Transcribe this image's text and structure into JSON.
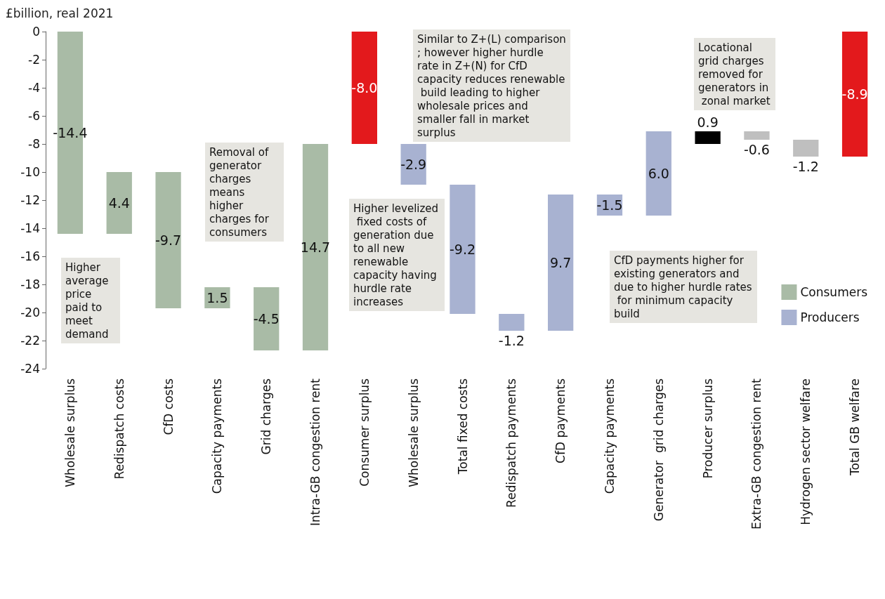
{
  "chart_data": {
    "type": "bar",
    "ylabel": "£billion, real 2021",
    "categories": [
      "Wholesale surplus",
      "Redispatch costs",
      "CfD costs",
      "Capacity payments",
      "Grid charges",
      "Intra-GB congestion rent",
      "Consumer surplus",
      "Wholesale surplus",
      "Total fixed costs",
      "Redispatch payments",
      "CfD payments",
      "Capacity payments",
      "Generator  grid charges",
      "Producer surplus",
      "Extra-GB congestion rent",
      "Hydrogen sector welfare",
      "Total GB welfare"
    ],
    "series": [
      {
        "name": "Consumers",
        "color": "#a9bba6",
        "values": [
          -14.4,
          4.4,
          -9.7,
          1.5,
          -4.5,
          14.7,
          null,
          null,
          null,
          null,
          null,
          null,
          null,
          null,
          null,
          null,
          null
        ],
        "base": [
          0,
          -14.4,
          -10.0,
          -19.7,
          -18.2,
          -22.7,
          null,
          null,
          null,
          null,
          null,
          null,
          null,
          null,
          null,
          null,
          null
        ]
      },
      {
        "name": "Producers",
        "color": "#a8b2d1",
        "values": [
          null,
          null,
          null,
          null,
          null,
          null,
          null,
          -2.9,
          -9.2,
          -1.2,
          9.7,
          -1.5,
          6.0,
          null,
          null,
          null,
          null
        ],
        "base": [
          null,
          null,
          null,
          null,
          null,
          null,
          null,
          -8.0,
          -10.9,
          -20.1,
          -21.3,
          -11.6,
          -13.1,
          null,
          null,
          null,
          null
        ]
      },
      {
        "color": "#e3191c",
        "values": [
          null,
          null,
          null,
          null,
          null,
          null,
          -8.0,
          null,
          null,
          null,
          null,
          null,
          null,
          null,
          null,
          null,
          -8.9
        ],
        "base": [
          null,
          null,
          null,
          null,
          null,
          null,
          0,
          null,
          null,
          null,
          null,
          null,
          null,
          null,
          null,
          null,
          0
        ]
      },
      {
        "color": "#000000",
        "values": [
          null,
          null,
          null,
          null,
          null,
          null,
          null,
          null,
          null,
          null,
          null,
          null,
          null,
          0.9,
          null,
          null,
          null
        ],
        "base": [
          null,
          null,
          null,
          null,
          null,
          null,
          null,
          null,
          null,
          null,
          null,
          null,
          null,
          -8.0,
          null,
          null,
          null
        ]
      },
      {
        "color": "#bfbfbf",
        "values": [
          null,
          null,
          null,
          null,
          null,
          null,
          null,
          null,
          null,
          null,
          null,
          null,
          null,
          null,
          -0.6,
          -1.2,
          null
        ],
        "base": [
          null,
          null,
          null,
          null,
          null,
          null,
          null,
          null,
          null,
          null,
          null,
          null,
          null,
          null,
          -7.1,
          -7.7,
          null
        ]
      }
    ],
    "value_labels": [
      "-14.4",
      "4.4",
      "-9.7",
      "1.5",
      "-4.5",
      "14.7",
      "-8.0",
      "-2.9",
      "-9.2",
      "-1.2",
      "9.7",
      "-1.5",
      "6.0",
      "0.9",
      "-0.6",
      "-1.2",
      "-8.9"
    ],
    "ylim": [
      -24,
      0
    ],
    "yticks": [
      -24,
      -22,
      -20,
      -18,
      -16,
      -14,
      -12,
      -10,
      -8,
      -6,
      -4,
      -2,
      0
    ],
    "legend": "right",
    "annotations": [
      "Higher average price paid to meet demand",
      "Removal of generator charges means higher charges for consumers",
      "Similar to Z+(L) comparison; however higher hurdle rate in Z+(N) for CfD capacity reduces renewable build leading to higher wholesale prices and smaller fall in market surplus",
      "Higher levelized fixed costs of generation due to all new renewable capacity having hurdle rate increases",
      "Locational grid charges removed for generators in zonal market",
      "CfD payments higher for existing generators and due to higher hurdle rates for minimum capacity build"
    ]
  }
}
